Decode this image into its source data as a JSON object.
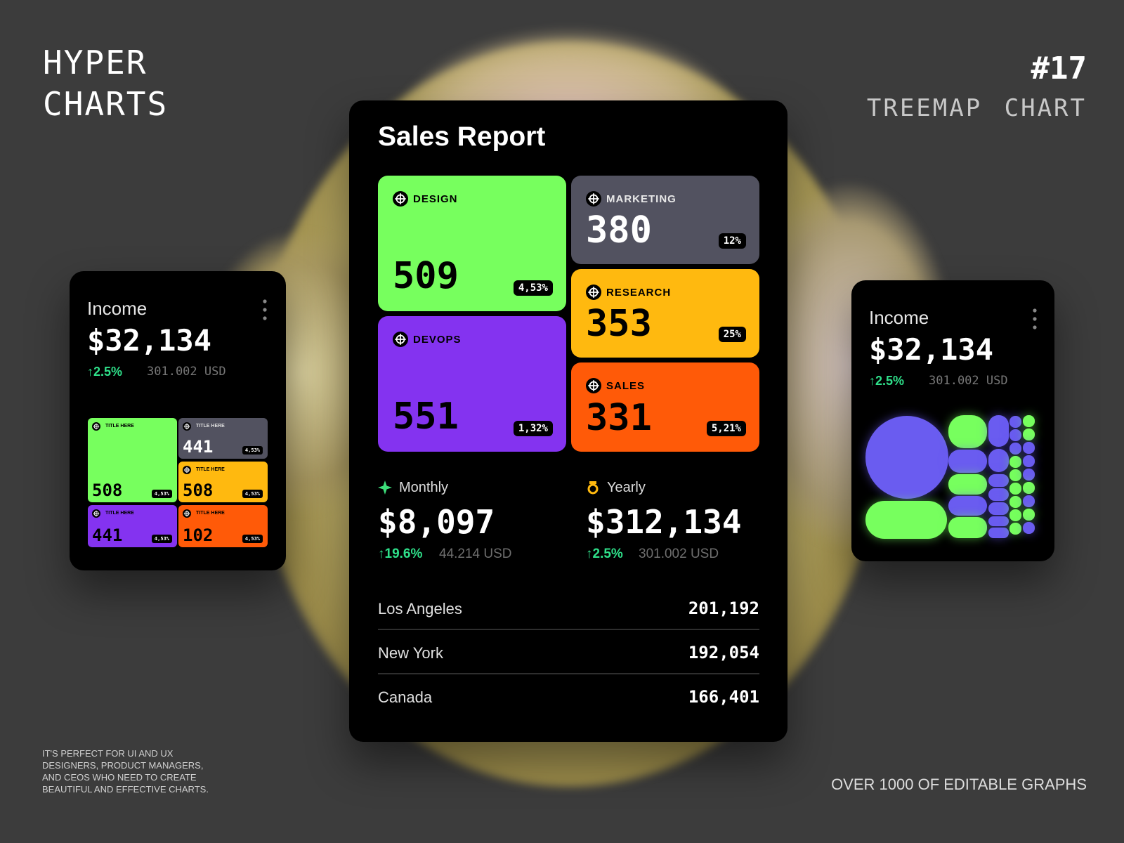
{
  "header": {
    "brand": [
      "HYPER",
      "CHARTS"
    ],
    "number": "#17",
    "subtitle": "TREEMAP CHART"
  },
  "main": {
    "title": "Sales Report",
    "tiles": [
      {
        "label": "DESIGN",
        "value": "509",
        "pct": "4,53%"
      },
      {
        "label": "DEVOPS",
        "value": "551",
        "pct": "1,32%"
      },
      {
        "label": "MARKETING",
        "value": "380",
        "pct": "12%"
      },
      {
        "label": "RESEARCH",
        "value": "353",
        "pct": "25%"
      },
      {
        "label": "SALES",
        "value": "331",
        "pct": "5,21%"
      }
    ],
    "summary": [
      {
        "label": "Monthly",
        "value": "$8,097",
        "change": "↑19.6%",
        "usd": "44.214 USD"
      },
      {
        "label": "Yearly",
        "value": "$312,134",
        "change": "↑2.5%",
        "usd": "301.002 USD"
      }
    ],
    "rows": [
      {
        "name": "Los Angeles",
        "value": "201,192"
      },
      {
        "name": "New York",
        "value": "192,054"
      },
      {
        "name": "Canada",
        "value": "166,401"
      }
    ]
  },
  "left_card": {
    "title": "Income",
    "value": "$32,134",
    "change": "↑2.5%",
    "usd": "301.002 USD",
    "tiles": [
      {
        "label": "TITLE HERE",
        "value": "508",
        "pct": "4,53%"
      },
      {
        "label": "TITLE HERE",
        "value": "441",
        "pct": "4,53%"
      },
      {
        "label": "TITLE HERE",
        "value": "508",
        "pct": "4,53%"
      },
      {
        "label": "TITLE HERE",
        "value": "441",
        "pct": "4,53%"
      },
      {
        "label": "TITLE HERE",
        "value": "102",
        "pct": "4,53%"
      }
    ]
  },
  "right_card": {
    "title": "Income",
    "value": "$32,134",
    "change": "↑2.5%",
    "usd": "301.002 USD"
  },
  "footer": {
    "note": [
      "IT'S PERFECT FOR UI AND UX",
      "DESIGNERS, PRODUCT MANAGERS,",
      "AND CEOS WHO NEED TO CREATE",
      "BEAUTIFUL AND EFFECTIVE CHARTS."
    ],
    "tagline": "OVER 1000 OF EDITABLE GRAPHS"
  }
}
